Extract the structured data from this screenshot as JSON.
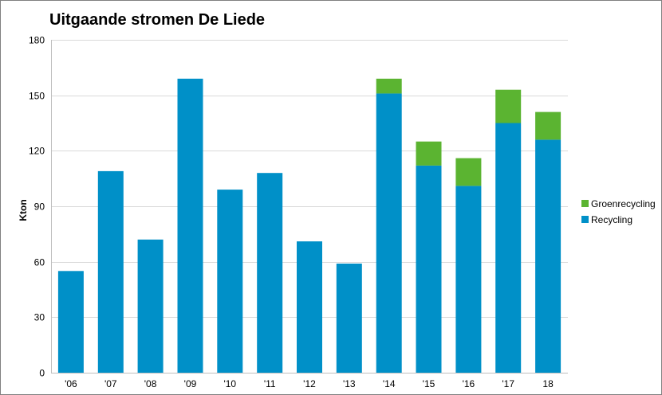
{
  "chart_data": {
    "type": "bar",
    "stacked": true,
    "title": "Uitgaande stromen De Liede",
    "xlabel": "",
    "ylabel": "Kton",
    "categories": [
      "'06",
      "'07",
      "'08",
      "'09",
      "'10",
      "'11",
      "'12",
      "'13",
      "'14",
      "'15",
      "'16",
      "'17",
      "18"
    ],
    "ylim": [
      0,
      180
    ],
    "yticks": [
      0,
      30,
      60,
      90,
      120,
      150,
      180
    ],
    "grid": true,
    "legend_position": "right",
    "series": [
      {
        "name": "Recycling",
        "color": "#0090C8",
        "values": [
          55,
          109,
          72,
          159,
          99,
          108,
          71,
          59,
          151,
          112,
          101,
          135,
          126
        ]
      },
      {
        "name": "Groenrecycling",
        "color": "#5BB431",
        "values": [
          0,
          0,
          0,
          0,
          0,
          0,
          0,
          0,
          8,
          13,
          15,
          18,
          15
        ]
      }
    ],
    "legend_order": [
      "Groenrecycling",
      "Recycling"
    ]
  }
}
